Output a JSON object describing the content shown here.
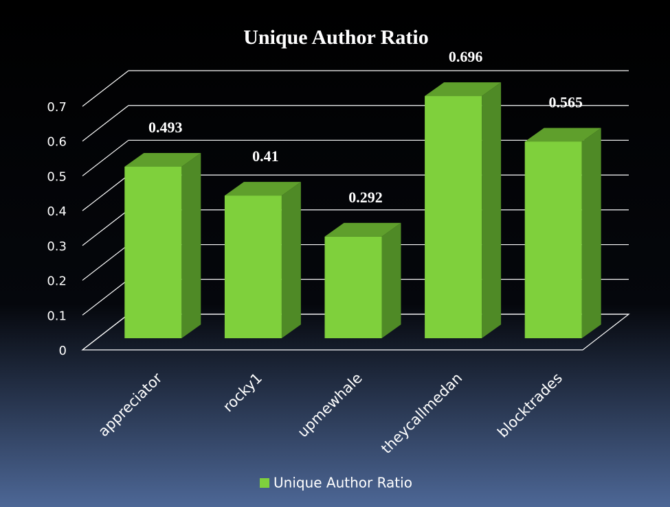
{
  "chart_data": {
    "type": "bar3d",
    "title": "Unique Author Ratio",
    "categories": [
      "appreciator",
      "rocky1",
      "upmewhale",
      "theycallmedan",
      "blocktrades"
    ],
    "series": [
      {
        "name": "Unique Author Ratio",
        "color": "#7fd03c",
        "values": [
          0.493,
          0.41,
          0.292,
          0.696,
          0.565
        ]
      }
    ],
    "ylim": [
      0,
      0.7
    ],
    "yticks": [
      0,
      0.1,
      0.2,
      0.3,
      0.4,
      0.5,
      0.6,
      0.7
    ],
    "grid": true,
    "legend": "bottom"
  }
}
